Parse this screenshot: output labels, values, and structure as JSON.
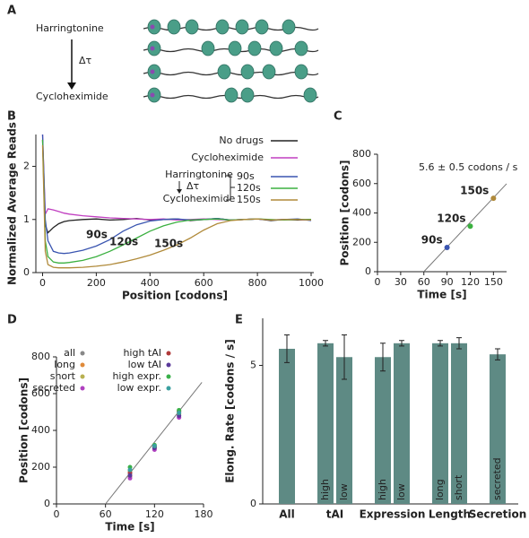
{
  "diagram": {
    "label": "A",
    "top": "Harringtonine",
    "delta": "Δτ",
    "bottom": "Cycloheximide"
  },
  "chart_data": [
    {
      "type": "line",
      "label": "B",
      "xlabel": "Position [codons]",
      "ylabel": "Normalized Average Reads",
      "x": [
        0,
        10,
        20,
        40,
        60,
        80,
        100,
        150,
        200,
        250,
        300,
        350,
        400,
        450,
        500,
        550,
        600,
        650,
        700,
        750,
        800,
        850,
        900,
        950,
        1000
      ],
      "series": [
        {
          "name": "No drugs",
          "color": "#222222",
          "values": [
            2.5,
            0.9,
            0.75,
            0.85,
            0.92,
            0.96,
            0.98,
            1.0,
            1.01,
            0.99,
            1.0,
            1.02,
            0.99,
            1.0,
            1.01,
            0.98,
            1.0,
            1.02,
            0.99,
            1.0,
            1.01,
            0.98,
            1.0,
            0.99,
            1.0
          ]
        },
        {
          "name": "Cycloheximide",
          "color": "#c03ec0",
          "values": [
            2.6,
            1.1,
            1.2,
            1.18,
            1.15,
            1.12,
            1.1,
            1.07,
            1.05,
            1.03,
            1.02,
            1.01,
            1.0,
            1.01,
            0.99,
            1.0,
            1.01,
            1.0,
            0.99,
            1.0,
            1.01,
            0.99,
            1.0,
            1.0,
            0.99
          ]
        },
        {
          "name": "90s",
          "color": "#3a55b0",
          "values": [
            2.6,
            1.0,
            0.6,
            0.4,
            0.37,
            0.36,
            0.37,
            0.42,
            0.5,
            0.62,
            0.78,
            0.9,
            0.97,
            1.0,
            1.01,
            0.99,
            1.0,
            1.02,
            0.99,
            1.0,
            1.01,
            0.99,
            1.0,
            1.01,
            0.98
          ]
        },
        {
          "name": "120s",
          "color": "#3bb040",
          "values": [
            2.5,
            0.6,
            0.3,
            0.2,
            0.18,
            0.18,
            0.19,
            0.23,
            0.3,
            0.4,
            0.52,
            0.65,
            0.78,
            0.88,
            0.95,
            0.99,
            1.0,
            1.01,
            0.99,
            1.0,
            1.01,
            1.0,
            0.99,
            1.0,
            1.0
          ]
        },
        {
          "name": "150s",
          "color": "#b08a3a",
          "values": [
            2.4,
            0.4,
            0.15,
            0.1,
            0.09,
            0.09,
            0.09,
            0.1,
            0.12,
            0.15,
            0.2,
            0.26,
            0.33,
            0.42,
            0.52,
            0.65,
            0.8,
            0.92,
            0.98,
            1.0,
            1.01,
            0.99,
            1.0,
            1.0,
            0.99
          ]
        }
      ],
      "legend_group": {
        "top": "Harringtonine",
        "delta": "Δτ",
        "bottom": "Cycloheximide"
      },
      "xlim": [
        -25,
        1010
      ],
      "xticks": [
        0,
        200,
        400,
        600,
        800,
        1000
      ],
      "ylim": [
        0,
        2.6
      ],
      "yticks": [
        0,
        1,
        2
      ]
    },
    {
      "type": "scatter",
      "label": "C",
      "xlabel": "Time [s]",
      "ylabel": "Position [codons]",
      "x": [
        90,
        120,
        150
      ],
      "values": [
        165,
        310,
        500
      ],
      "colors": [
        "#3a55b0",
        "#3bb040",
        "#b08a3a"
      ],
      "point_labels": [
        "90s",
        "120s",
        "150s"
      ],
      "fit": {
        "x": [
          60,
          167
        ],
        "values": [
          0,
          599
        ]
      },
      "annotation": "5.6 ± 0.5 codons / s",
      "xlim": [
        0,
        167
      ],
      "xticks": [
        0,
        30,
        60,
        90,
        120,
        150
      ],
      "ylim": [
        0,
        800
      ],
      "yticks": [
        0,
        200,
        400,
        600,
        800
      ]
    },
    {
      "type": "scatter",
      "label": "D",
      "xlabel": "Time [s]",
      "ylabel": "Position [codons]",
      "x": [
        90,
        120,
        150
      ],
      "series": [
        {
          "name": "all",
          "color": "#888888",
          "values": [
            165,
            310,
            500
          ]
        },
        {
          "name": "long",
          "color": "#e08a3a",
          "values": [
            150,
            300,
            490
          ]
        },
        {
          "name": "short",
          "color": "#b8b050",
          "values": [
            180,
            315,
            505
          ]
        },
        {
          "name": "secreted",
          "color": "#b040c0",
          "values": [
            140,
            295,
            470
          ]
        },
        {
          "name": "high tAI",
          "color": "#b03a3a",
          "values": [
            170,
            310,
            505
          ]
        },
        {
          "name": "low tAI",
          "color": "#5a3a9a",
          "values": [
            155,
            305,
            480
          ]
        },
        {
          "name": "high expr.",
          "color": "#3ab04a",
          "values": [
            200,
            320,
            510
          ]
        },
        {
          "name": "low expr.",
          "color": "#3aa0a0",
          "values": [
            185,
            315,
            495
          ]
        }
      ],
      "fit": {
        "x": [
          60,
          178
        ],
        "values": [
          0,
          661
        ]
      },
      "xlim": [
        0,
        180
      ],
      "xticks": [
        0,
        60,
        120,
        180
      ],
      "ylim": [
        0,
        800
      ],
      "yticks": [
        0,
        200,
        400,
        600,
        800
      ]
    },
    {
      "type": "bar",
      "label": "E",
      "ylabel": "Elong. Rate [codons / s]",
      "color": "#5e8a84",
      "groups": [
        {
          "name": "All",
          "categories": [
            null
          ],
          "values": [
            5.6
          ],
          "errors": [
            0.5
          ]
        },
        {
          "name": "tAI",
          "categories": [
            "high",
            "low"
          ],
          "values": [
            5.8,
            5.3
          ],
          "errors": [
            0.1,
            0.8
          ]
        },
        {
          "name": "Expression",
          "categories": [
            "high",
            "low"
          ],
          "values": [
            5.3,
            5.8
          ],
          "errors": [
            0.5,
            0.1
          ]
        },
        {
          "name": "Length",
          "categories": [
            "long",
            "short"
          ],
          "values": [
            5.8,
            5.8
          ],
          "errors": [
            0.1,
            0.2
          ]
        },
        {
          "name": "Secretion",
          "categories": [
            "secreted"
          ],
          "values": [
            5.4
          ],
          "errors": [
            0.2
          ]
        }
      ],
      "ylim": [
        0,
        6.7
      ],
      "yticks": [
        0,
        5
      ]
    }
  ]
}
